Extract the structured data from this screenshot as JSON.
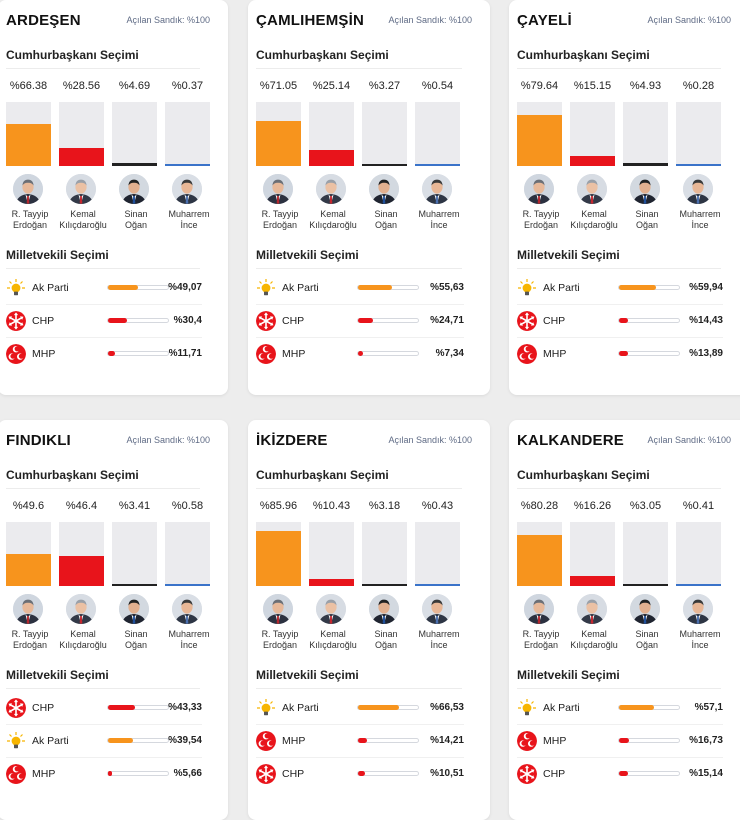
{
  "colors": {
    "akp": "#f7941d",
    "chp": "#e8141b",
    "mhp": "#e8141b",
    "ogan": "#222222",
    "ince": "#3a73c9"
  },
  "labels": {
    "opened": "Açılan Sandık: %100",
    "president_section": "Cumhurbaşkanı Seçimi",
    "parliament_section": "Milletvekili Seçimi"
  },
  "candidates": [
    {
      "line1": "R. Tayyip",
      "line2": "Erdoğan",
      "icon": "erdogan-avatar"
    },
    {
      "line1": "Kemal",
      "line2": "Kılıçdaroğlu",
      "icon": "kilicdaroglu-avatar"
    },
    {
      "line1": "Sinan",
      "line2": "Oğan",
      "icon": "ogan-avatar"
    },
    {
      "line1": "Muharrem",
      "line2": "İnce",
      "icon": "ince-avatar"
    }
  ],
  "cards": [
    {
      "title": "ARDEŞEN",
      "president": [
        {
          "label": "%66.38",
          "value": 66.38
        },
        {
          "label": "%28.56",
          "value": 28.56
        },
        {
          "label": "%4.69",
          "value": 4.69
        },
        {
          "label": "%0.37",
          "value": 0.37
        }
      ],
      "parties": [
        {
          "name": "Ak Parti",
          "key": "akp",
          "label": "%49,07",
          "value": 49.07
        },
        {
          "name": "CHP",
          "key": "chp",
          "label": "%30,4",
          "value": 30.4
        },
        {
          "name": "MHP",
          "key": "mhp",
          "label": "%11,71",
          "value": 11.71
        }
      ]
    },
    {
      "title": "ÇAMLIHEMŞİN",
      "president": [
        {
          "label": "%71.05",
          "value": 71.05
        },
        {
          "label": "%25.14",
          "value": 25.14
        },
        {
          "label": "%3.27",
          "value": 3.27
        },
        {
          "label": "%0.54",
          "value": 0.54
        }
      ],
      "parties": [
        {
          "name": "Ak Parti",
          "key": "akp",
          "label": "%55,63",
          "value": 55.63
        },
        {
          "name": "CHP",
          "key": "chp",
          "label": "%24,71",
          "value": 24.71
        },
        {
          "name": "MHP",
          "key": "mhp",
          "label": "%7,34",
          "value": 7.34
        }
      ]
    },
    {
      "title": "ÇAYELİ",
      "president": [
        {
          "label": "%79.64",
          "value": 79.64
        },
        {
          "label": "%15.15",
          "value": 15.15
        },
        {
          "label": "%4.93",
          "value": 4.93
        },
        {
          "label": "%0.28",
          "value": 0.28
        }
      ],
      "parties": [
        {
          "name": "Ak Parti",
          "key": "akp",
          "label": "%59,94",
          "value": 59.94
        },
        {
          "name": "CHP",
          "key": "chp",
          "label": "%14,43",
          "value": 14.43
        },
        {
          "name": "MHP",
          "key": "mhp",
          "label": "%13,89",
          "value": 13.89
        }
      ]
    },
    {
      "title": "FINDIKLI",
      "president": [
        {
          "label": "%49.6",
          "value": 49.6
        },
        {
          "label": "%46.4",
          "value": 46.4
        },
        {
          "label": "%3.41",
          "value": 3.41
        },
        {
          "label": "%0.58",
          "value": 0.58
        }
      ],
      "parties": [
        {
          "name": "CHP",
          "key": "chp",
          "label": "%43,33",
          "value": 43.33
        },
        {
          "name": "Ak Parti",
          "key": "akp",
          "label": "%39,54",
          "value": 39.54
        },
        {
          "name": "MHP",
          "key": "mhp",
          "label": "%5,66",
          "value": 5.66
        }
      ]
    },
    {
      "title": "İKİZDERE",
      "president": [
        {
          "label": "%85.96",
          "value": 85.96
        },
        {
          "label": "%10.43",
          "value": 10.43
        },
        {
          "label": "%3.18",
          "value": 3.18
        },
        {
          "label": "%0.43",
          "value": 0.43
        }
      ],
      "parties": [
        {
          "name": "Ak Parti",
          "key": "akp",
          "label": "%66,53",
          "value": 66.53
        },
        {
          "name": "MHP",
          "key": "mhp",
          "label": "%14,21",
          "value": 14.21
        },
        {
          "name": "CHP",
          "key": "chp",
          "label": "%10,51",
          "value": 10.51
        }
      ]
    },
    {
      "title": "KALKANDERE",
      "president": [
        {
          "label": "%80.28",
          "value": 80.28
        },
        {
          "label": "%16.26",
          "value": 16.26
        },
        {
          "label": "%3.05",
          "value": 3.05
        },
        {
          "label": "%0.41",
          "value": 0.41
        }
      ],
      "parties": [
        {
          "name": "Ak Parti",
          "key": "akp",
          "label": "%57,1",
          "value": 57.1
        },
        {
          "name": "MHP",
          "key": "mhp",
          "label": "%16,73",
          "value": 16.73
        },
        {
          "name": "CHP",
          "key": "chp",
          "label": "%15,14",
          "value": 15.14
        }
      ]
    }
  ]
}
